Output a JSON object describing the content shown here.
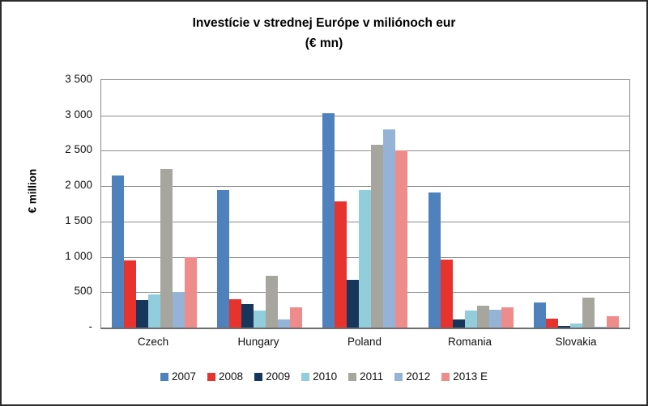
{
  "window": {
    "background": "#FFFFFF",
    "border_color": "#2B2B2B"
  },
  "chart_data": {
    "type": "bar",
    "title_line1": "Investície v strednej Európe v miliónoch eur",
    "title_line2": "(€ mn)",
    "y_axis_title": "€ million",
    "categories": [
      "Czech",
      "Hungary",
      "Poland",
      "Romania",
      "Slovakia"
    ],
    "series": [
      {
        "name": "2007",
        "color": "#4F81BD",
        "values": [
          2150,
          1940,
          3030,
          1910,
          360
        ]
      },
      {
        "name": "2008",
        "color": "#E7322E",
        "values": [
          950,
          400,
          1780,
          960,
          130
        ]
      },
      {
        "name": "2009",
        "color": "#16365C",
        "values": [
          390,
          330,
          670,
          120,
          25
        ]
      },
      {
        "name": "2010",
        "color": "#92CDDC",
        "values": [
          470,
          240,
          1950,
          240,
          55
        ]
      },
      {
        "name": "2011",
        "color": "#A6A69E",
        "values": [
          2240,
          730,
          2590,
          310,
          420
        ]
      },
      {
        "name": "2012",
        "color": "#95B3D7",
        "values": [
          500,
          120,
          2800,
          250,
          10
        ]
      },
      {
        "name": "2013 E",
        "color": "#EE8C8B",
        "values": [
          1000,
          290,
          2500,
          290,
          160
        ]
      }
    ],
    "ylim": [
      0,
      3500
    ],
    "y_ticks": [
      {
        "value": 3500,
        "label": "3 500"
      },
      {
        "value": 3000,
        "label": "3 000"
      },
      {
        "value": 2500,
        "label": "2 500"
      },
      {
        "value": 2000,
        "label": "2 000"
      },
      {
        "value": 1500,
        "label": "1 500"
      },
      {
        "value": 1000,
        "label": "1 000"
      },
      {
        "value": 500,
        "label": "500"
      },
      {
        "value": 0,
        "label": "-"
      }
    ],
    "grid": "horizontal",
    "gridline_color": "#8C8C8C",
    "legend_position": "bottom"
  }
}
